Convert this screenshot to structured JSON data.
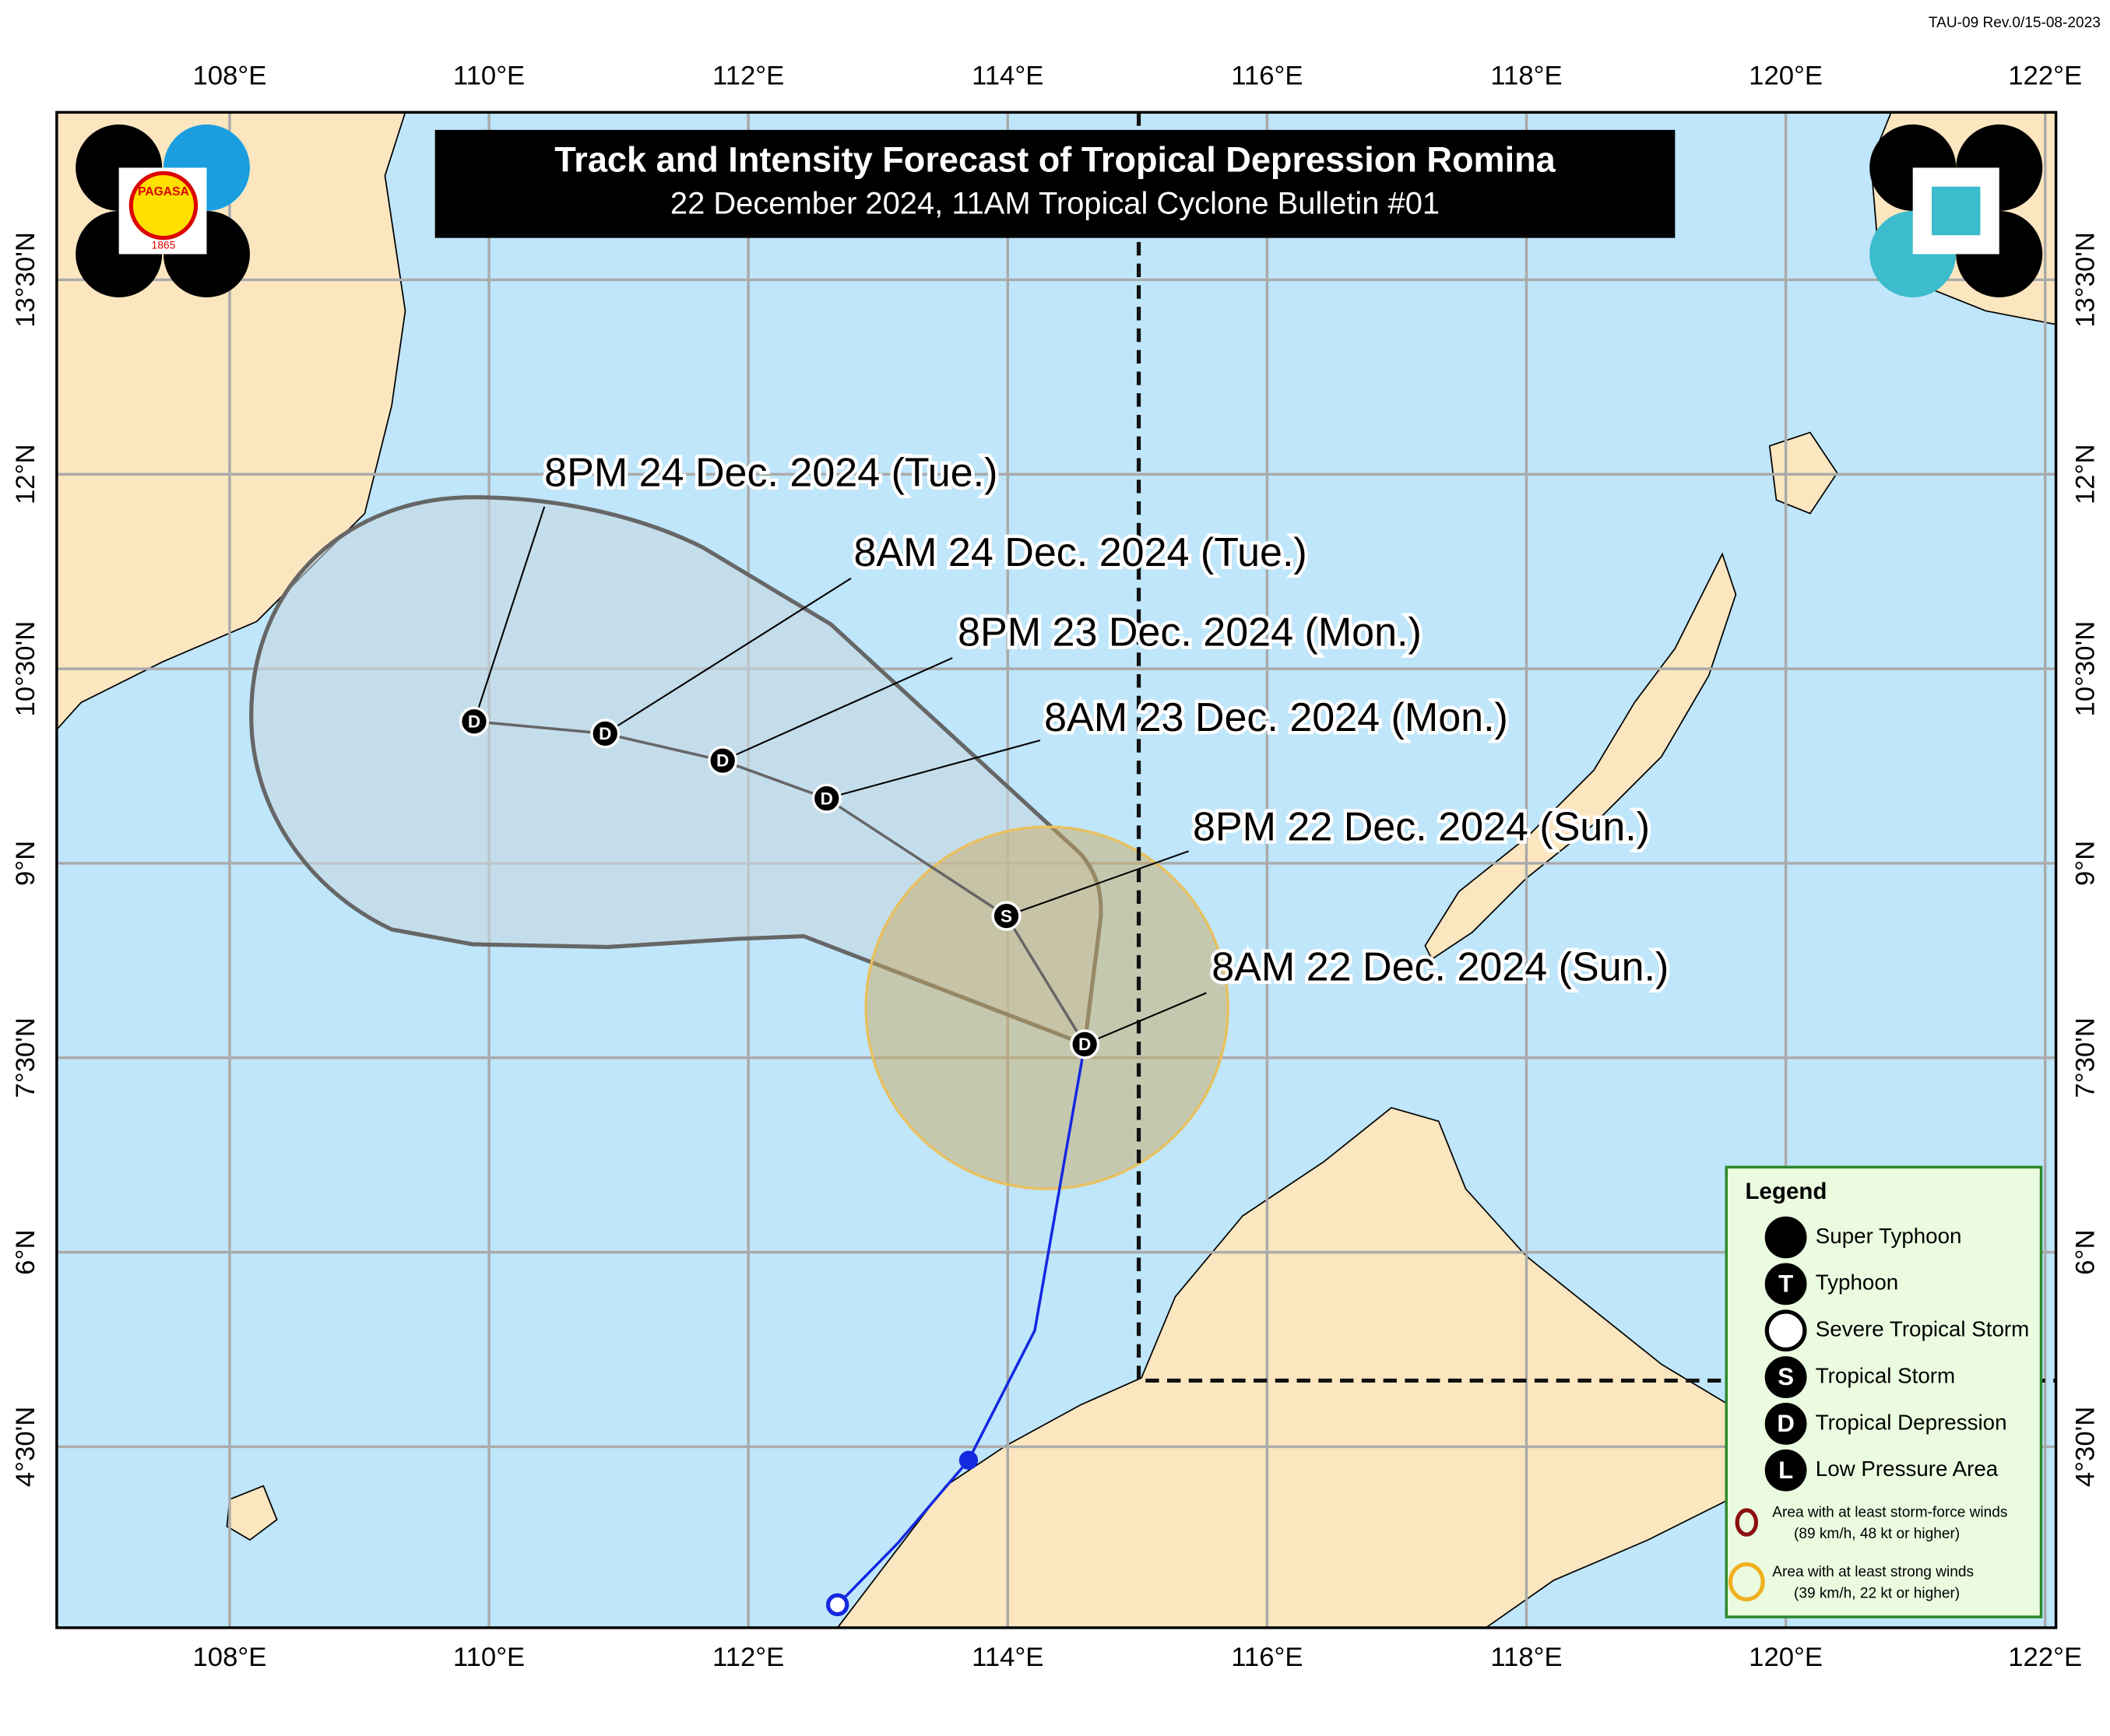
{
  "revision": "TAU-09 Rev.0/15-08-2023",
  "header": {
    "title": "Track and Intensity Forecast of Tropical Depression Romina",
    "subtitle": "22 December 2024, 11AM Tropical Cyclone Bulletin #01"
  },
  "logo": {
    "name": "PAGASA",
    "year": "1865"
  },
  "longitudes": [
    "108°E",
    "110°E",
    "112°E",
    "114°E",
    "116°E",
    "118°E",
    "120°E",
    "122°E"
  ],
  "latitudes": [
    "4°30'N",
    "6°N",
    "7°30'N",
    "9°N",
    "10°30'N",
    "12°N",
    "13°30'N"
  ],
  "forecast": [
    {
      "symbol": "D",
      "label": "8AM 22 Dec. 2024 (Sun.)"
    },
    {
      "symbol": "S",
      "label": "8PM 22 Dec. 2024 (Sun.)"
    },
    {
      "symbol": "D",
      "label": "8AM 23 Dec. 2024 (Mon.)"
    },
    {
      "symbol": "D",
      "label": "8PM 23 Dec. 2024 (Mon.)"
    },
    {
      "symbol": "D",
      "label": "8AM 24 Dec. 2024 (Tue.)"
    },
    {
      "symbol": "D",
      "label": "8PM 24 Dec. 2024 (Tue.)"
    }
  ],
  "legend": {
    "title": "Legend",
    "items": [
      {
        "symbol": "",
        "label": "Super Typhoon"
      },
      {
        "symbol": "T",
        "label": "Typhoon"
      },
      {
        "symbol": "",
        "label": "Severe Tropical Storm"
      },
      {
        "symbol": "S",
        "label": "Tropical Storm"
      },
      {
        "symbol": "D",
        "label": "Tropical Depression"
      },
      {
        "symbol": "L",
        "label": "Low Pressure Area"
      }
    ],
    "areas": [
      {
        "line1": "Area with at least storm-force winds",
        "line2": "(89 km/h, 48 kt or higher)"
      },
      {
        "line1": "Area with at least strong winds",
        "line2": "(39 km/h, 22 kt or higher)"
      }
    ]
  }
}
